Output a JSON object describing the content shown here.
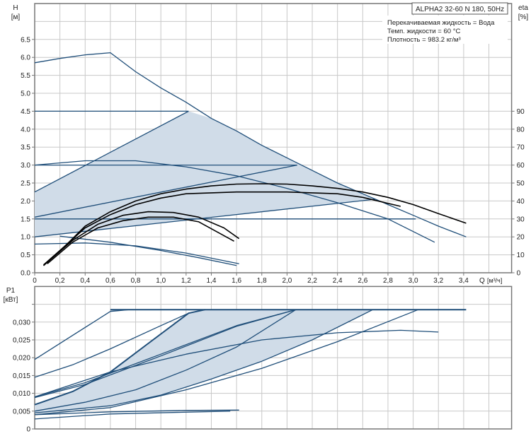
{
  "chart_data": [
    {
      "type": "line",
      "title": "ALPHA2 32-60 N 180, 50Hz",
      "info": [
        "Перекачиваемая жидкость = Вода",
        "Темп. жидкости = 60 °C",
        "Плотность = 983.2 кг/м³"
      ],
      "ylabel": "H",
      "yunit": "[м]",
      "y2label": "eta",
      "y2unit": "[%]",
      "xlabel": "Q",
      "xunit": "[м³/ч]",
      "xlim": [
        0,
        3.78
      ],
      "ylim": [
        0,
        7.5
      ],
      "y2lim": [
        0,
        150
      ],
      "grid": true,
      "xticks": [
        "0",
        "0,2",
        "0,4",
        "0,6",
        "0,8",
        "1,0",
        "1,2",
        "1,4",
        "1,6",
        "1,8",
        "2,0",
        "2,2",
        "2,4",
        "2,6",
        "2,8",
        "3,0",
        "3,2",
        "3,4"
      ],
      "yticks": [
        "0.0",
        "0.5",
        "1.0",
        "1.5",
        "2.0",
        "2.5",
        "3.0",
        "3.5",
        "4.0",
        "4.5",
        "5.0",
        "5.5",
        "6.0",
        "6.5"
      ],
      "y2ticks": [
        "0",
        "10",
        "20",
        "30",
        "40",
        "50",
        "60",
        "70",
        "80",
        "90"
      ],
      "shaded_area": [
        [
          0,
          1.0
        ],
        [
          0,
          2.25
        ],
        [
          1.22,
          4.5
        ],
        [
          1.4,
          4.3
        ],
        [
          1.6,
          3.95
        ],
        [
          1.8,
          3.55
        ],
        [
          2.0,
          3.2
        ],
        [
          2.2,
          2.85
        ],
        [
          2.4,
          2.5
        ],
        [
          2.6,
          2.2
        ],
        [
          2.7,
          2.05
        ]
      ],
      "series": [
        {
          "kind": "head",
          "points": [
            [
              0,
              5.85
            ],
            [
              0.2,
              5.97
            ],
            [
              0.4,
              6.07
            ],
            [
              0.6,
              6.13
            ],
            [
              0.8,
              5.6
            ],
            [
              1.0,
              5.15
            ],
            [
              1.2,
              4.75
            ],
            [
              1.4,
              4.3
            ],
            [
              1.6,
              3.95
            ],
            [
              1.8,
              3.55
            ],
            [
              2.0,
              3.2
            ],
            [
              2.2,
              2.85
            ],
            [
              2.4,
              2.5
            ],
            [
              2.6,
              2.2
            ],
            [
              2.8,
              1.9
            ],
            [
              3.0,
              1.6
            ],
            [
              3.2,
              1.3
            ],
            [
              3.42,
              1.0
            ]
          ]
        },
        {
          "kind": "head",
          "points": [
            [
              0,
              4.5
            ],
            [
              1.22,
              4.5
            ]
          ]
        },
        {
          "kind": "head",
          "points": [
            [
              0,
              3.0
            ],
            [
              2.08,
              3.0
            ]
          ]
        },
        {
          "kind": "head",
          "points": [
            [
              0,
              1.5
            ],
            [
              3.02,
              1.5
            ]
          ]
        },
        {
          "kind": "head",
          "points": [
            [
              0,
              2.25
            ],
            [
              1.22,
              4.5
            ]
          ]
        },
        {
          "kind": "head",
          "points": [
            [
              0,
              1.55
            ],
            [
              2.08,
              3.0
            ]
          ]
        },
        {
          "kind": "head",
          "points": [
            [
              0,
              1.0
            ],
            [
              2.7,
              2.05
            ]
          ]
        },
        {
          "kind": "head",
          "points": [
            [
              0,
              3.0
            ],
            [
              0.4,
              3.12
            ],
            [
              0.8,
              3.12
            ],
            [
              1.2,
              2.95
            ],
            [
              1.6,
              2.7
            ],
            [
              2.0,
              2.35
            ],
            [
              2.4,
              1.95
            ],
            [
              2.8,
              1.5
            ],
            [
              3.17,
              0.85
            ]
          ]
        },
        {
          "kind": "head",
          "points": [
            [
              0,
              0.8
            ],
            [
              0.4,
              0.83
            ],
            [
              0.8,
              0.75
            ],
            [
              1.2,
              0.55
            ],
            [
              1.62,
              0.25
            ]
          ]
        },
        {
          "kind": "head",
          "points": [
            [
              0.2,
              1.02
            ],
            [
              0.6,
              0.85
            ],
            [
              1.0,
              0.62
            ],
            [
              1.3,
              0.42
            ],
            [
              1.6,
              0.2
            ]
          ]
        },
        {
          "kind": "eta",
          "points": [
            [
              0.07,
              0.2
            ],
            [
              0.2,
              0.6
            ],
            [
              0.4,
              1.3
            ],
            [
              0.6,
              1.7
            ],
            [
              0.8,
              2.0
            ],
            [
              1.0,
              2.2
            ],
            [
              1.2,
              2.33
            ],
            [
              1.4,
              2.42
            ],
            [
              1.6,
              2.47
            ],
            [
              1.8,
              2.48
            ],
            [
              2.0,
              2.47
            ],
            [
              2.2,
              2.42
            ],
            [
              2.4,
              2.35
            ],
            [
              2.6,
              2.25
            ],
            [
              2.8,
              2.1
            ],
            [
              3.0,
              1.9
            ],
            [
              3.2,
              1.65
            ],
            [
              3.42,
              1.38
            ]
          ]
        },
        {
          "kind": "eta",
          "points": [
            [
              0.07,
              0.22
            ],
            [
              0.2,
              0.62
            ],
            [
              0.4,
              1.25
            ],
            [
              0.6,
              1.62
            ],
            [
              0.8,
              1.9
            ],
            [
              1.0,
              2.08
            ],
            [
              1.2,
              2.2
            ],
            [
              1.6,
              2.25
            ],
            [
              2.0,
              2.25
            ],
            [
              2.4,
              2.2
            ],
            [
              2.6,
              2.1
            ],
            [
              2.9,
              1.85
            ]
          ]
        },
        {
          "kind": "eta",
          "points": [
            [
              0.07,
              0.2
            ],
            [
              0.3,
              0.9
            ],
            [
              0.5,
              1.35
            ],
            [
              0.7,
              1.6
            ],
            [
              0.9,
              1.7
            ],
            [
              1.1,
              1.68
            ],
            [
              1.3,
              1.55
            ],
            [
              1.5,
              1.25
            ],
            [
              1.62,
              0.95
            ]
          ]
        },
        {
          "kind": "eta",
          "points": [
            [
              0.1,
              0.25
            ],
            [
              0.3,
              0.85
            ],
            [
              0.5,
              1.25
            ],
            [
              0.7,
              1.45
            ],
            [
              0.9,
              1.55
            ],
            [
              1.1,
              1.55
            ],
            [
              1.3,
              1.42
            ],
            [
              1.58,
              0.88
            ]
          ]
        }
      ]
    },
    {
      "type": "line",
      "ylabel": "P1",
      "yunit": "[кВт]",
      "xlim": [
        0,
        3.78
      ],
      "ylim": [
        0,
        0.04
      ],
      "grid": true,
      "yticks": [
        "0",
        "0,005",
        "0,010",
        "0,015",
        "0,020",
        "0,025",
        "0,030",
        ""
      ],
      "shaded_area": [
        [
          0,
          0.0068
        ],
        [
          0.3,
          0.0105
        ],
        [
          0.6,
          0.016
        ],
        [
          0.9,
          0.024
        ],
        [
          1.22,
          0.0325
        ],
        [
          1.35,
          0.0335
        ],
        [
          2.68,
          0.0335
        ],
        [
          2.2,
          0.025
        ],
        [
          1.8,
          0.019
        ],
        [
          1.4,
          0.014
        ],
        [
          1.0,
          0.0095
        ],
        [
          0.6,
          0.0065
        ],
        [
          0,
          0.0045
        ]
      ],
      "series": [
        {
          "points": [
            [
              0.6,
              0.0335
            ],
            [
              3.42,
              0.0335
            ]
          ]
        },
        {
          "points": [
            [
              0,
              0.0195
            ],
            [
              0.6,
              0.033
            ],
            [
              0.75,
              0.0335
            ]
          ]
        },
        {
          "points": [
            [
              0,
              0.0145
            ],
            [
              0.3,
              0.018
            ],
            [
              0.6,
              0.0225
            ],
            [
              1.0,
              0.029
            ],
            [
              1.22,
              0.0325
            ]
          ]
        },
        {
          "points": [
            [
              0,
              0.0068
            ],
            [
              0.3,
              0.0105
            ],
            [
              0.6,
              0.016
            ],
            [
              0.9,
              0.024
            ],
            [
              1.22,
              0.0325
            ],
            [
              1.35,
              0.0335
            ]
          ]
        },
        {
          "points": [
            [
              0,
              0.009
            ],
            [
              0.4,
              0.013
            ],
            [
              1.0,
              0.021
            ],
            [
              1.6,
              0.029
            ],
            [
              2.07,
              0.0335
            ]
          ]
        },
        {
          "points": [
            [
              0,
              0.0088
            ],
            [
              0.4,
              0.0125
            ],
            [
              1.0,
              0.0205
            ],
            [
              1.6,
              0.0288
            ],
            [
              2.07,
              0.0335
            ]
          ]
        },
        {
          "points": [
            [
              0,
              0.005
            ],
            [
              0.4,
              0.0075
            ],
            [
              0.8,
              0.011
            ],
            [
              1.2,
              0.0165
            ],
            [
              1.6,
              0.023
            ],
            [
              2.07,
              0.0335
            ]
          ]
        },
        {
          "points": [
            [
              0,
              0.0045
            ],
            [
              0.6,
              0.0065
            ],
            [
              1.0,
              0.0095
            ],
            [
              1.4,
              0.014
            ],
            [
              1.8,
              0.019
            ],
            [
              2.2,
              0.025
            ],
            [
              2.68,
              0.0335
            ]
          ]
        },
        {
          "points": [
            [
              0,
              0.004
            ],
            [
              0.6,
              0.006
            ],
            [
              1.2,
              0.011
            ],
            [
              1.8,
              0.017
            ],
            [
              2.4,
              0.0245
            ],
            [
              3.04,
              0.0335
            ]
          ]
        },
        {
          "points": [
            [
              0,
              0.009
            ],
            [
              0.6,
              0.016
            ],
            [
              1.2,
              0.021
            ],
            [
              1.8,
              0.025
            ],
            [
              2.4,
              0.027
            ],
            [
              2.9,
              0.0277
            ],
            [
              3.2,
              0.0272
            ]
          ]
        },
        {
          "points": [
            [
              0,
              0.004
            ],
            [
              0.6,
              0.0048
            ],
            [
              1.2,
              0.0052
            ],
            [
              1.62,
              0.0053
            ]
          ]
        },
        {
          "points": [
            [
              0,
              0.0028
            ],
            [
              0.6,
              0.0042
            ],
            [
              1.55,
              0.005
            ]
          ]
        }
      ]
    }
  ],
  "colors": {
    "curve": "#1f4e79",
    "eta": "#000000",
    "fill": "#d0dce8",
    "grid": "#c8c8c8",
    "axis": "#777777"
  }
}
